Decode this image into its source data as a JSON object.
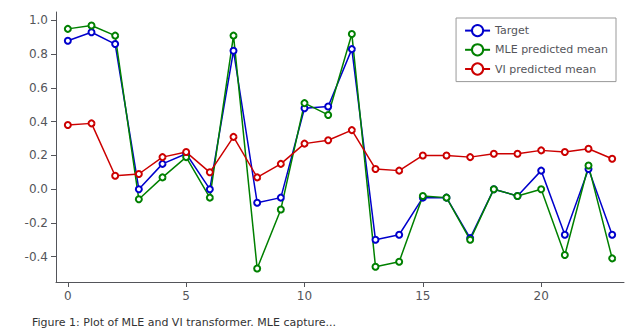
{
  "chart_data": {
    "type": "line",
    "x": [
      0,
      1,
      2,
      3,
      4,
      5,
      6,
      7,
      8,
      9,
      10,
      11,
      12,
      13,
      14,
      15,
      16,
      17,
      18,
      19,
      20,
      21,
      22,
      23
    ],
    "series": [
      {
        "name": "Target",
        "color": "#0000cc",
        "marker": "circle",
        "values": [
          0.88,
          0.93,
          0.86,
          0.0,
          0.15,
          0.21,
          0.0,
          0.82,
          -0.08,
          -0.05,
          0.48,
          0.49,
          0.83,
          -0.3,
          -0.27,
          -0.05,
          -0.05,
          -0.29,
          0.0,
          -0.04,
          0.11,
          -0.27,
          0.12,
          -0.27
        ]
      },
      {
        "name": "MLE predicted mean",
        "color": "#008000",
        "marker": "circle",
        "values": [
          0.95,
          0.97,
          0.91,
          -0.06,
          0.07,
          0.19,
          -0.05,
          0.91,
          -0.47,
          -0.12,
          0.51,
          0.44,
          0.92,
          -0.46,
          -0.43,
          -0.04,
          -0.05,
          -0.3,
          0.0,
          -0.04,
          0.0,
          -0.39,
          0.14,
          -0.41
        ]
      },
      {
        "name": "VI predicted mean",
        "color": "#cc0000",
        "marker": "circle",
        "values": [
          0.38,
          0.39,
          0.08,
          0.09,
          0.19,
          0.22,
          0.1,
          0.31,
          0.07,
          0.15,
          0.27,
          0.29,
          0.35,
          0.12,
          0.11,
          0.2,
          0.2,
          0.19,
          0.21,
          0.21,
          0.23,
          0.22,
          0.24,
          0.18
        ]
      }
    ],
    "xlim": [
      -0.5,
      23.5
    ],
    "xticks": [
      0,
      5,
      10,
      15,
      20
    ],
    "ylim": [
      -0.55,
      1.05
    ],
    "yticks": [
      -0.4,
      -0.2,
      {
        "value": 0.0,
        "label": "0.0"
      },
      0.2,
      0.4,
      0.6,
      0.8,
      {
        "value": 1.0,
        "label": "1.0"
      }
    ],
    "legend": "upper right",
    "grid": false,
    "annotations": [
      "Figure 1: Plot of MLE and VI transformer. MLE capture..."
    ]
  }
}
